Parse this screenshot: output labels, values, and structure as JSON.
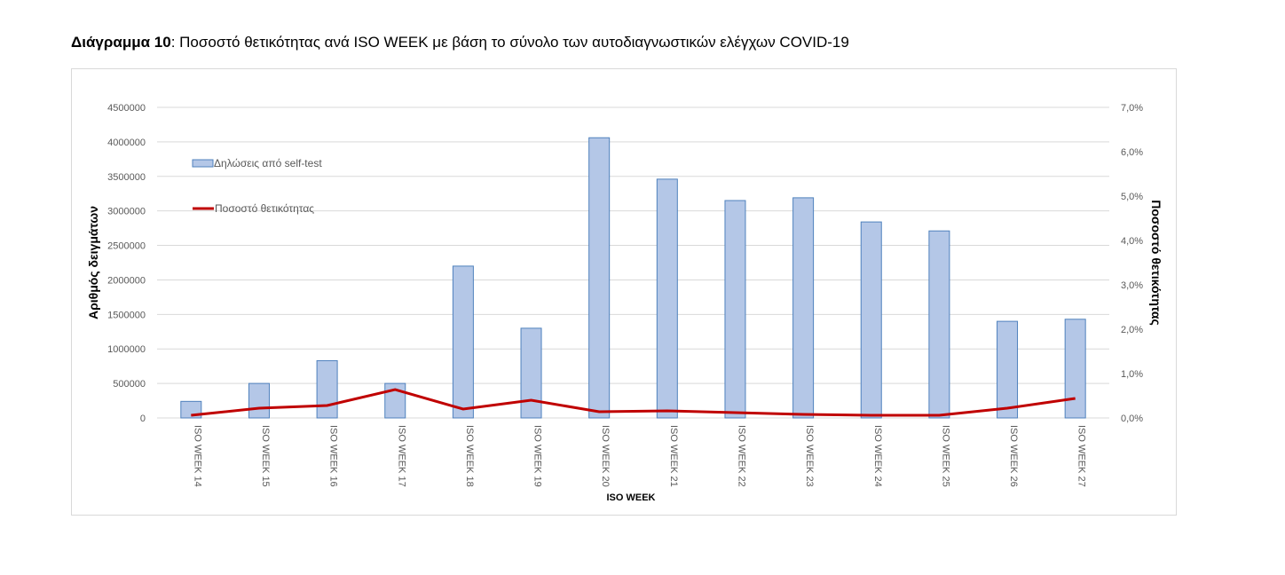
{
  "title": {
    "bold": "Διάγραμμα 10",
    "rest": ": Ποσοστό θετικότητας ανά ISO WEEK με βάση το σύνολο των αυτοδιαγνωστικών ελέγχων COVID-19"
  },
  "colors": {
    "bar_fill": "#b4c7e7",
    "bar_stroke": "#4f81bd",
    "line": "#c00000",
    "grid": "#d9d9d9"
  },
  "chart_data": {
    "type": "bar+line",
    "xlabel": "ISO WEEK",
    "ylabel": "Αριθμός δειγμάτων",
    "y2label": "Ποσοστό θετικότητας",
    "ylim": [
      0,
      4500000
    ],
    "y2lim": [
      0,
      7.0
    ],
    "yticks": [
      "0",
      "500000",
      "1000000",
      "1500000",
      "2000000",
      "2500000",
      "3000000",
      "3500000",
      "4000000",
      "4500000"
    ],
    "y2ticks": [
      "0,0%",
      "1,0%",
      "2,0%",
      "3,0%",
      "4,0%",
      "5,0%",
      "6,0%",
      "7,0%"
    ],
    "grid": true,
    "legend_placement": "top-left",
    "categories": [
      "ISO WEEK 14",
      "ISO WEEK 15",
      "ISO WEEK 16",
      "ISO WEEK 17",
      "ISO WEEK 18",
      "ISO WEEK 19",
      "ISO WEEK 20",
      "ISO WEEK 21",
      "ISO WEEK 22",
      "ISO WEEK 23",
      "ISO WEEK 24",
      "ISO WEEK 25",
      "ISO WEEK 26",
      "ISO WEEK 27"
    ],
    "series": [
      {
        "name": "Δηλώσεις από self-test",
        "type": "bar",
        "axis": "left",
        "values": [
          240000,
          500000,
          830000,
          500000,
          2200000,
          1300000,
          4060000,
          3460000,
          3150000,
          3190000,
          2840000,
          2710000,
          1400000,
          1430000
        ]
      },
      {
        "name": "Ποσοστό θετικότητας",
        "type": "line",
        "axis": "right",
        "unit": "%",
        "values": [
          0.06,
          0.22,
          0.28,
          0.64,
          0.2,
          0.4,
          0.14,
          0.16,
          0.12,
          0.08,
          0.06,
          0.06,
          0.22,
          0.44
        ]
      }
    ]
  }
}
